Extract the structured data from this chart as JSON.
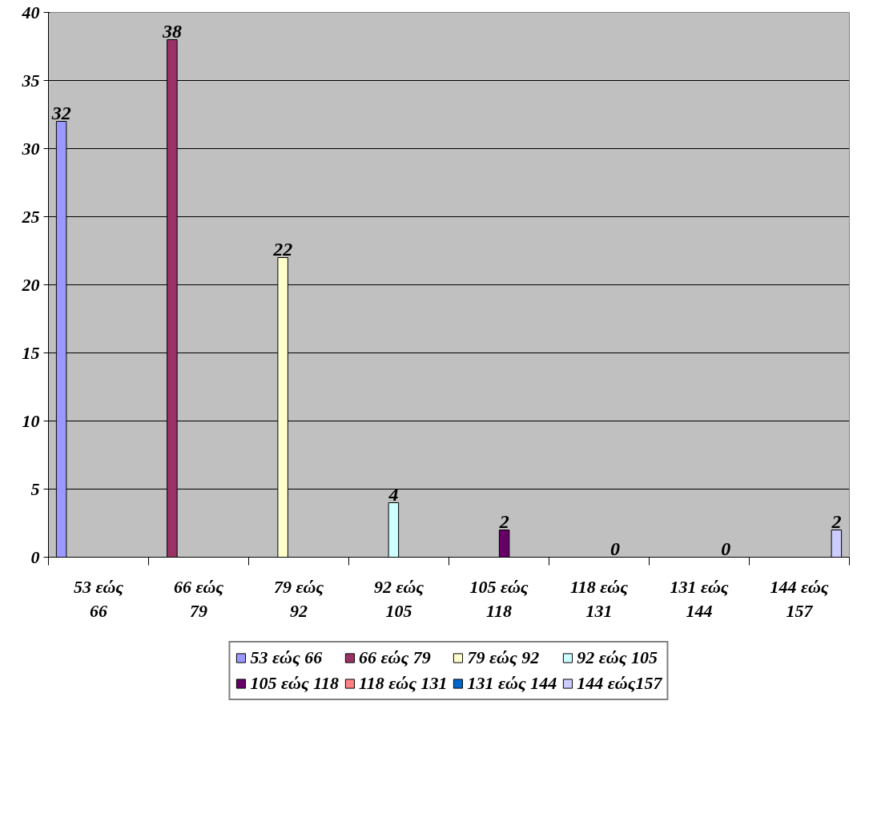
{
  "chart_data": {
    "type": "bar",
    "categories": [
      "53 εώς 66",
      "66 εώς 79",
      "79 εώς 92",
      "92 εώς 105",
      "105 εώς 118",
      "118 εώς 131",
      "131 εώς 144",
      "144 εώς 157"
    ],
    "series": [
      {
        "name": "53 εώς 66",
        "color": "#9999ff",
        "values": [
          32,
          null,
          null,
          null,
          null,
          null,
          null,
          null
        ]
      },
      {
        "name": "66 εώς 79",
        "color": "#993366",
        "values": [
          null,
          38,
          null,
          null,
          null,
          null,
          null,
          null
        ]
      },
      {
        "name": "79 εώς 92",
        "color": "#ffffcc",
        "values": [
          null,
          null,
          22,
          null,
          null,
          null,
          null,
          null
        ]
      },
      {
        "name": "92 εώς 105",
        "color": "#ccffff",
        "values": [
          null,
          null,
          null,
          4,
          null,
          null,
          null,
          null
        ]
      },
      {
        "name": "105 εώς 118",
        "color": "#660066",
        "values": [
          null,
          null,
          null,
          null,
          2,
          null,
          null,
          null
        ]
      },
      {
        "name": "118 εώς 131",
        "color": "#ff8080",
        "values": [
          null,
          null,
          null,
          null,
          null,
          0,
          null,
          null
        ]
      },
      {
        "name": "131 εώς 144",
        "color": "#0066cc",
        "values": [
          null,
          null,
          null,
          null,
          null,
          null,
          0,
          null
        ]
      },
      {
        "name": "144 εώς157",
        "color": "#ccccff",
        "values": [
          null,
          null,
          null,
          null,
          null,
          null,
          null,
          2
        ]
      }
    ],
    "ylim": [
      0,
      40
    ],
    "yticks": [
      0,
      5,
      10,
      15,
      20,
      25,
      30,
      35,
      40
    ],
    "grid": "y",
    "legend": "bottom",
    "data_labels": true
  }
}
